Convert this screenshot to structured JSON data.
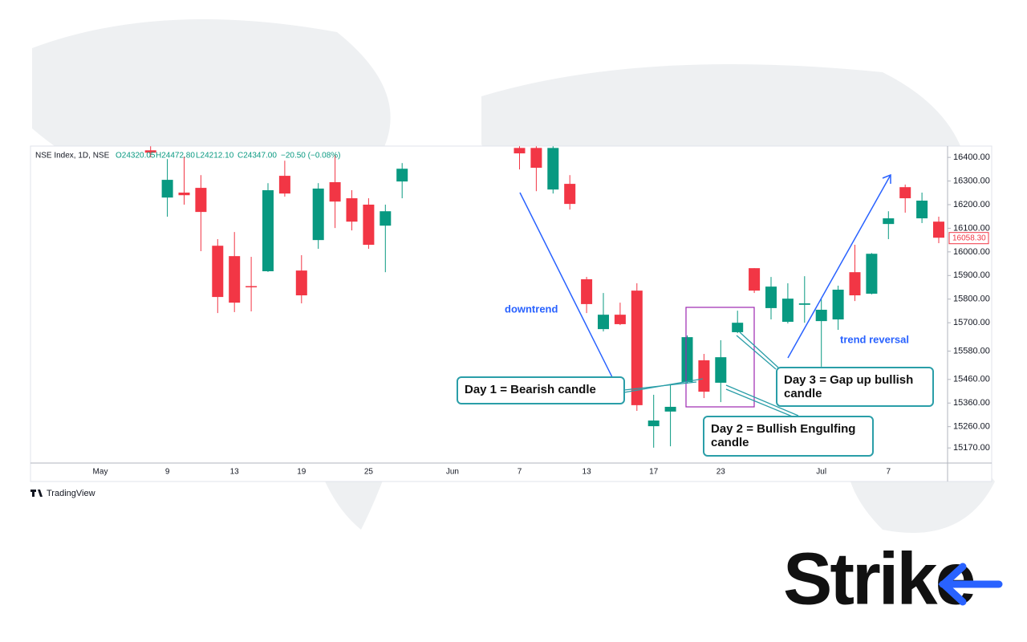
{
  "chart_data": {
    "type": "candlestick",
    "header": {
      "symbol": "NSE Index, 1D, NSE",
      "open": "O24320.05",
      "high": "H24472.80",
      "low": "L24212.10",
      "close": "C24347.00",
      "change": "−20.50 (−0.08%)"
    },
    "categories": [
      "May",
      null,
      null,
      null,
      "9",
      null,
      null,
      null,
      "13",
      null,
      null,
      null,
      "19",
      null,
      null,
      null,
      "25",
      null,
      null,
      null,
      null,
      "Jun",
      null,
      null,
      null,
      "7",
      null,
      null,
      null,
      "13",
      null,
      null,
      null,
      "17",
      null,
      null,
      null,
      "23",
      null,
      null,
      null,
      null,
      null,
      "Jul",
      null,
      null,
      null,
      "7",
      null,
      null,
      null
    ],
    "up_color": "#089981",
    "down_color": "#f23645",
    "candles": [
      null,
      null,
      null,
      {
        "open": 16430,
        "high": 16447,
        "low": 16400,
        "close": 16420
      },
      {
        "open": 16230,
        "high": 16393,
        "low": 16149,
        "close": 16305
      },
      {
        "open": 16251,
        "high": 16403,
        "low": 16200,
        "close": 16240
      },
      {
        "open": 16271,
        "high": 16325,
        "low": 16003,
        "close": 16169
      },
      {
        "open": 16026,
        "high": 16054,
        "low": 15741,
        "close": 15809
      },
      {
        "open": 15982,
        "high": 16084,
        "low": 15745,
        "close": 15785
      },
      {
        "open": 15855,
        "high": 15979,
        "low": 15748,
        "close": 15851
      },
      {
        "open": 15918,
        "high": 16291,
        "low": 15915,
        "close": 16261
      },
      {
        "open": 16322,
        "high": 16386,
        "low": 16234,
        "close": 16247
      },
      {
        "open": 15921,
        "high": 15986,
        "low": 15782,
        "close": 15816
      },
      {
        "open": 16050,
        "high": 16291,
        "low": 16013,
        "close": 16268
      },
      {
        "open": 16295,
        "high": 16410,
        "low": 16101,
        "close": 16213
      },
      {
        "open": 16227,
        "high": 16261,
        "low": 16091,
        "close": 16128
      },
      {
        "open": 16200,
        "high": 16227,
        "low": 16013,
        "close": 16030
      },
      {
        "open": 16111,
        "high": 16200,
        "low": 15914,
        "close": 16172
      },
      {
        "open": 16298,
        "high": 16376,
        "low": 16227,
        "close": 16352
      },
      null,
      null,
      null,
      null,
      null,
      null,
      {
        "open": 16440,
        "high": 16447,
        "low": 16349,
        "close": 16417
      },
      {
        "open": 16440,
        "high": 16447,
        "low": 16257,
        "close": 16356
      },
      {
        "open": 16264,
        "high": 16447,
        "low": 16247,
        "close": 16440
      },
      {
        "open": 16288,
        "high": 16325,
        "low": 16179,
        "close": 16203
      },
      {
        "open": 15884,
        "high": 15894,
        "low": 15741,
        "close": 15779
      },
      {
        "open": 15673,
        "high": 15826,
        "low": 15663,
        "close": 15734
      },
      {
        "open": 15734,
        "high": 15785,
        "low": 15690,
        "close": 15694
      },
      {
        "open": 15836,
        "high": 15867,
        "low": 15327,
        "close": 15351
      },
      {
        "open": 15262,
        "high": 15395,
        "low": 15171,
        "close": 15286
      },
      {
        "open": 15324,
        "high": 15436,
        "low": 15177,
        "close": 15344
      },
      {
        "open": 15449,
        "high": 15646,
        "low": 15442,
        "close": 15639
      },
      {
        "open": 15541,
        "high": 15568,
        "low": 15381,
        "close": 15408
      },
      {
        "open": 15446,
        "high": 15626,
        "low": 15364,
        "close": 15554
      },
      {
        "open": 15660,
        "high": 15751,
        "low": 15656,
        "close": 15700
      },
      {
        "open": 15931,
        "high": 15931,
        "low": 15826,
        "close": 15836
      },
      {
        "open": 15762,
        "high": 15894,
        "low": 15714,
        "close": 15853
      },
      {
        "open": 15704,
        "high": 15867,
        "low": 15697,
        "close": 15802
      },
      {
        "open": 15776,
        "high": 15897,
        "low": 15700,
        "close": 15782
      },
      {
        "open": 15707,
        "high": 15799,
        "low": 15514,
        "close": 15755
      },
      {
        "open": 15714,
        "high": 15857,
        "low": 15670,
        "close": 15840
      },
      {
        "open": 15914,
        "high": 16030,
        "low": 15792,
        "close": 15816
      },
      {
        "open": 15823,
        "high": 15995,
        "low": 15820,
        "close": 15992
      },
      {
        "open": 16118,
        "high": 16172,
        "low": 16054,
        "close": 16142
      },
      {
        "open": 16274,
        "high": 16285,
        "low": 16166,
        "close": 16227
      },
      {
        "open": 16142,
        "high": 16251,
        "low": 16122,
        "close": 16217
      },
      {
        "open": 16128,
        "high": 16149,
        "low": 16037,
        "close": 16060
      }
    ],
    "ylim": [
      15106,
      16448
    ],
    "yticks": [
      {
        "value": 16400,
        "label": "16400.00"
      },
      {
        "value": 16300,
        "label": "16300.00"
      },
      {
        "value": 16200,
        "label": "16200.00"
      },
      {
        "value": 16100,
        "label": "16100.00"
      },
      {
        "value": 16000,
        "label": "16000.00"
      },
      {
        "value": 15900,
        "label": "15900.00"
      },
      {
        "value": 15800,
        "label": "15800.00"
      },
      {
        "value": 15700,
        "label": "15700.00"
      },
      {
        "value": 15580,
        "label": "15580.00"
      },
      {
        "value": 15460,
        "label": "15460.00"
      },
      {
        "value": 15360,
        "label": "15360.00"
      },
      {
        "value": 15260,
        "label": "15260.00"
      },
      {
        "value": 15170,
        "label": "15170.00"
      }
    ],
    "last_price": {
      "value": 16058.3,
      "label": "16058.30"
    },
    "annotations": {
      "downtrend": "downtrend",
      "reversal": "trend reversal",
      "day1": "Day 1 = Bearish candle",
      "day2": "Day 2 = Bullish Engulfing candle",
      "day3": "Day 3 = Gap up bullish candle"
    },
    "brand": "TradingView",
    "logo": "Strike"
  }
}
